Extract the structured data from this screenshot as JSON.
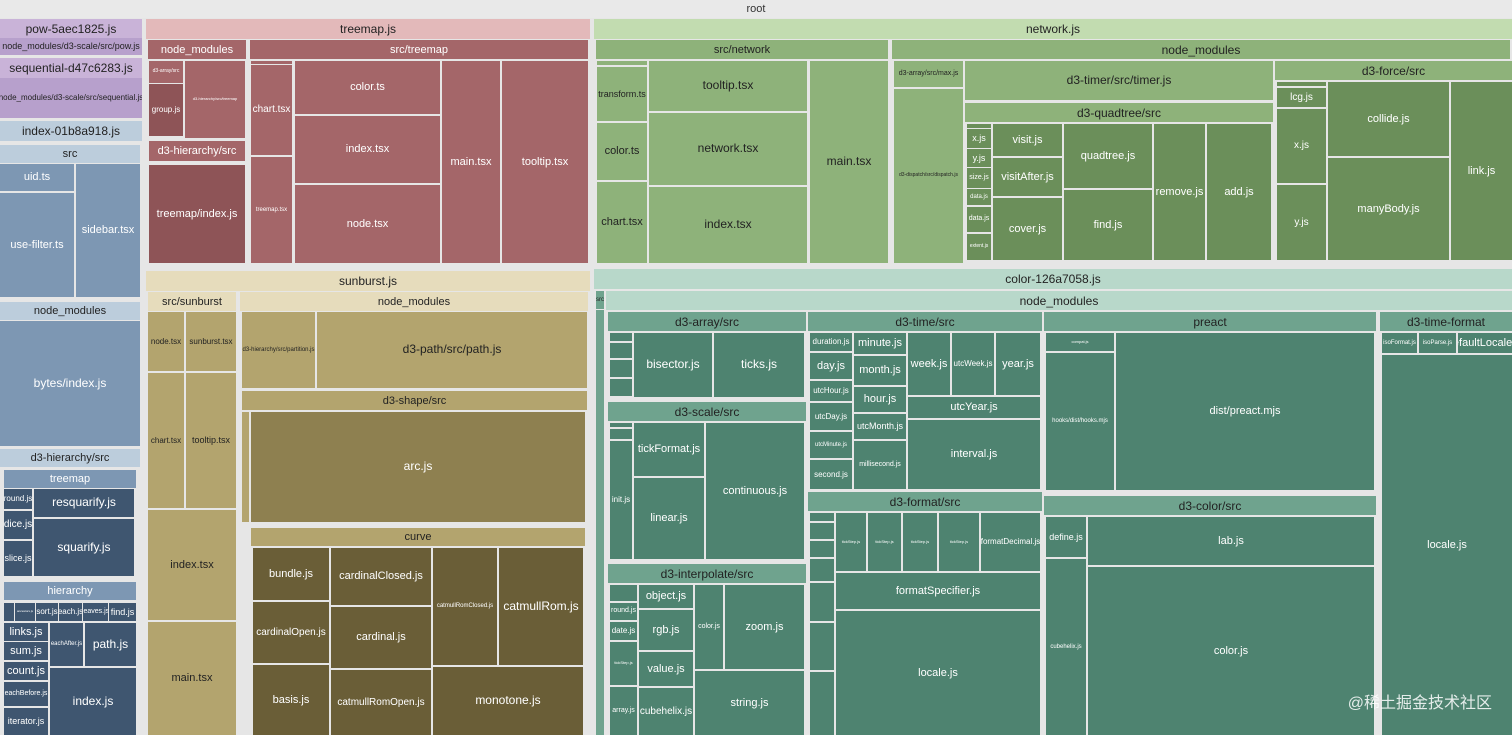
{
  "title": "root",
  "watermark": "@稀土掘金技术社区",
  "colors": {
    "purple_hdr": "#c9b3d8",
    "purple_fill": "#b7a0cc",
    "blue_hdr": "#bccddc",
    "blue_fill": "#7d97b3",
    "blue_dark": "#3f5670",
    "red_hdr": "#e3b9ba",
    "red_fill": "#a46669",
    "yellow_hdr": "#e6dcbc",
    "yellow_fill": "#b3a46e",
    "yellow_dark": "#6a5e37",
    "green_hdr": "#c2dcb0",
    "green_fill": "#8eb27a",
    "green_dark": "#6b8f5a",
    "teal_hdr": "#b8d8ca",
    "teal_fill": "#6fa38e"
  },
  "chunks": [
    {
      "label": "pow-5aec1825.js",
      "path": "node_modules/d3-scale/src/pow.js"
    },
    {
      "label": "sequential-d47c6283.js",
      "path": "node_modules/d3-scale/src/sequential.js"
    },
    {
      "label": "index-01b8a918.js"
    },
    {
      "label": "treemap.js"
    },
    {
      "label": "sunburst.js"
    },
    {
      "label": "network.js"
    },
    {
      "label": "color-126a7058.js"
    }
  ],
  "labels": {
    "src": "src",
    "uid": "uid.ts",
    "use_filter": "use-filter.ts",
    "sidebar": "sidebar.tsx",
    "node_modules": "node_modules",
    "bytes": "bytes/index.js",
    "d3_hierarchy_src": "d3-hierarchy/src",
    "treemap": "treemap",
    "round": "round.js",
    "resquarify": "resquarify.js",
    "dice": "dice.js",
    "squarify": "squarify.js",
    "slice": "slice.js",
    "hierarchy": "hierarchy",
    "sort": "sort.js",
    "each": "each.js",
    "leaves": "leaves.js",
    "find": "find.js",
    "links": "links.js",
    "path": "path.js",
    "sum": "sum.js",
    "eachAfter": "eachAfter.js",
    "count": "count.js",
    "eachBefore": "eachBefore.js",
    "index_js": "index.js",
    "iterator": "iterator.js",
    "ancestors": "ancestors.js",
    "src_treemap": "src/treemap",
    "d3_array_tiny": "d3-array/src",
    "group": "group.js",
    "d3_hier_tm": "d3-hierarchy/src/treemap",
    "treemap_index": "treemap/index.js",
    "chart_tsx": "chart.tsx",
    "color_ts": "color.ts",
    "index_tsx": "index.tsx",
    "node_tsx": "node.tsx",
    "main_tsx": "main.tsx",
    "tooltip_tsx": "tooltip.tsx",
    "treemap_bin": "treemap.tsx",
    "src_sunburst": "src/sunburst",
    "sunburst_tsx": "sunburst.tsx",
    "partition": "d3-hierarchy/src/partition.js",
    "d3_path": "d3-path/src/path.js",
    "d3_shape_src": "d3-shape/src",
    "arc": "arc.js",
    "curve": "curve",
    "bundle": "bundle.js",
    "cardinalClosed": "cardinalClosed.js",
    "catmullRomClosed": "catmullRomClosed.js",
    "catmullRom": "catmullRom.js",
    "cardinalOpen": "cardinalOpen.js",
    "cardinal": "cardinal.js",
    "basis": "basis.js",
    "catmullRomOpen": "catmullRomOpen.js",
    "monotone": "monotone.js",
    "src_network": "src/network",
    "transform_ts": "transform.ts",
    "network_tsx": "network.tsx",
    "d3_array_max": "d3-array/src/max.js",
    "d3_timer": "d3-timer/src/timer.js",
    "d3_force": "d3-force/src",
    "d3_dispatch": "d3-dispatch/src/dispatch.js",
    "d3_quadtree": "d3-quadtree/src",
    "x_js": "x.js",
    "y_js": "y.js",
    "size_js": "size.js",
    "data_js": "data.js",
    "extent_js": "extent.js",
    "visit": "visit.js",
    "visitAfter": "visitAfter.js",
    "quadtree": "quadtree.js",
    "cover": "cover.js",
    "remove": "remove.js",
    "add": "add.js",
    "lcg": "lcg.js",
    "collide": "collide.js",
    "manyBody": "manyBody.js",
    "link": "link.js",
    "src_s": "src",
    "d3_array_src": "d3-array/src",
    "bisector": "bisector.js",
    "ticks": "ticks.js",
    "d3_time_src": "d3-time/src",
    "duration": "duration.js",
    "minute": "minute.js",
    "week": "week.js",
    "utcWeek": "utcWeek.js",
    "year": "year.js",
    "day": "day.js",
    "month": "month.js",
    "utcHour": "utcHour.js",
    "hour": "hour.js",
    "utcDay": "utcDay.js",
    "utcMonth": "utcMonth.js",
    "utcYear": "utcYear.js",
    "utcMinute": "utcMinute.js",
    "second": "second.js",
    "millisecond": "millisecond.js",
    "interval": "interval.js",
    "d3_scale_src": "d3-scale/src",
    "tickFormat": "tickFormat.js",
    "continuous": "continuous.js",
    "init": "init.js",
    "linear": "linear.js",
    "d3_format_src": "d3-format/src",
    "formatSpecifier": "formatSpecifier.js",
    "locale": "locale.js",
    "d3_interpolate_src": "d3-interpolate/src",
    "object": "object.js",
    "rgb": "rgb.js",
    "color_js": "color.js",
    "zoom": "zoom.js",
    "date": "date.js",
    "value": "value.js",
    "string": "string.js",
    "array": "array.js",
    "cubehelix": "cubehelix.js",
    "preact": "preact",
    "dist_preact": "dist/preact.mjs",
    "hooks": "hooks/dist/hooks.mjs",
    "d3_color_src": "d3-color/src",
    "define": "define.js",
    "lab": "lab.js",
    "d3_time_format": "d3-time-format",
    "isoFormat": "isoFormat.js",
    "isoParse": "isoParse.js",
    "defaultLocale": "defaultLocale.js",
    "formatDecimal": "formatDecimal.js",
    "round_js": "round.js",
    "ts_js": "tickStep.js",
    "compat": "compat.js"
  }
}
